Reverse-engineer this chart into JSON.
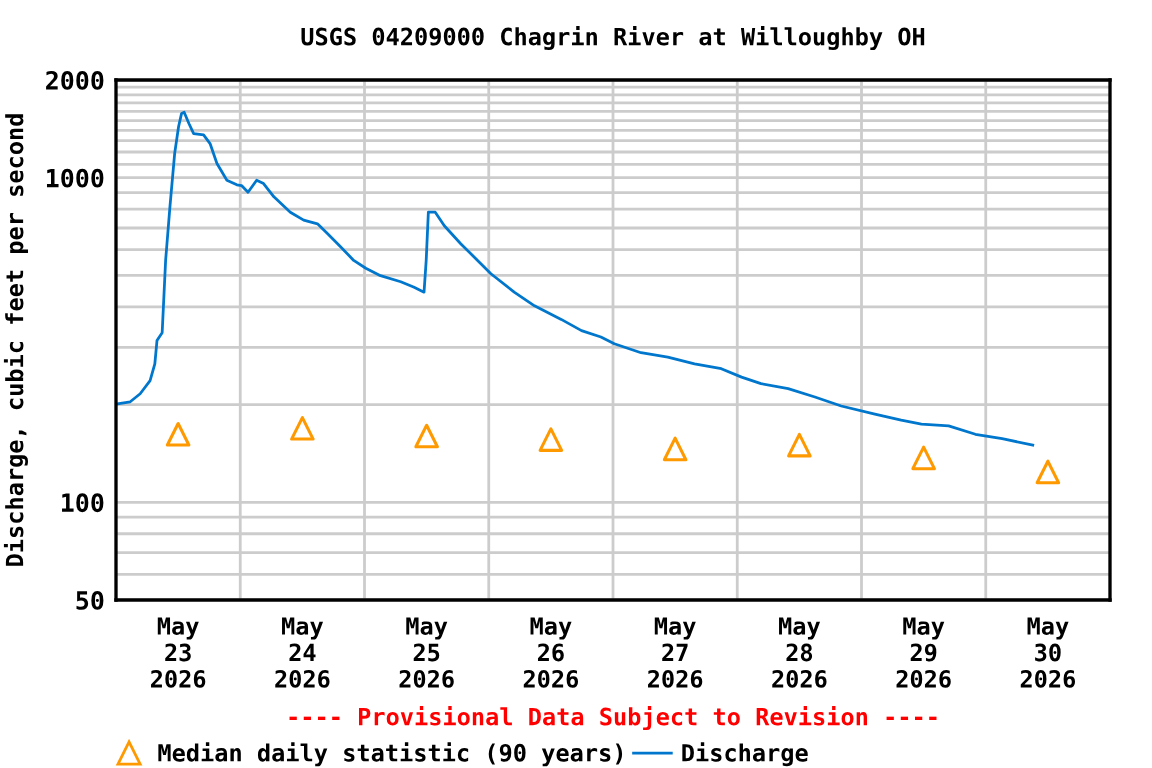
{
  "chart_data": {
    "type": "line",
    "title": "USGS 04209000 Chagrin River at Willoughby OH",
    "ylabel": "Discharge, cubic feet per second",
    "log": "y",
    "grid": true,
    "legend": "bottom",
    "annotations": [
      "---- Provisional Data Subject to Revision ----"
    ],
    "xlim": [
      "2026-05-23T00:00",
      "2026-05-31T00:00"
    ],
    "xticks": [
      {
        "value": "2026-05-23T12:00",
        "label": "May\n23\n2026"
      },
      {
        "value": "2026-05-24T12:00",
        "label": "May\n24\n2026"
      },
      {
        "value": "2026-05-25T12:00",
        "label": "May\n25\n2026"
      },
      {
        "value": "2026-05-26T12:00",
        "label": "May\n26\n2026"
      },
      {
        "value": "2026-05-27T12:00",
        "label": "May\n27\n2026"
      },
      {
        "value": "2026-05-28T12:00",
        "label": "May\n28\n2026"
      },
      {
        "value": "2026-05-29T12:00",
        "label": "May\n29\n2026"
      },
      {
        "value": "2026-05-30T12:00",
        "label": "May\n30\n2026"
      },
      {
        "value": "2026-05-24T00:00",
        "label": null
      },
      {
        "value": "2026-05-25T00:00",
        "label": null
      },
      {
        "value": "2026-05-26T00:00",
        "label": null
      },
      {
        "value": "2026-05-27T00:00",
        "label": null
      },
      {
        "value": "2026-05-28T00:00",
        "label": null
      },
      {
        "value": "2026-05-29T00:00",
        "label": null
      },
      {
        "value": "2026-05-30T00:00",
        "label": null
      }
    ],
    "ylim": [
      50,
      2000
    ],
    "yticks": [
      50,
      {
        "value": 60,
        "label": null
      },
      {
        "value": 70,
        "label": null
      },
      {
        "value": 80,
        "label": null
      },
      {
        "value": 90,
        "label": null
      },
      100,
      {
        "value": 200,
        "label": null
      },
      {
        "value": 300,
        "label": null
      },
      {
        "value": 400,
        "label": null
      },
      {
        "value": 500,
        "label": null
      },
      {
        "value": 600,
        "label": null
      },
      {
        "value": 700,
        "label": null
      },
      {
        "value": 800,
        "label": null
      },
      {
        "value": 900,
        "label": null
      },
      1000,
      {
        "value": 1100,
        "label": null
      },
      {
        "value": 1200,
        "label": null
      },
      {
        "value": 1300,
        "label": null
      },
      {
        "value": 1400,
        "label": null
      },
      {
        "value": 1500,
        "label": null
      },
      {
        "value": 1600,
        "label": null
      },
      {
        "value": 1700,
        "label": null
      },
      {
        "value": 1800,
        "label": null
      },
      {
        "value": 1900,
        "label": null
      },
      2000
    ],
    "series": [
      {
        "name": "Median daily statistic (90 years)",
        "type": "scatter",
        "marker": "triangle",
        "color": "#ff9900",
        "x": [
          "2026-05-23T12:00",
          "2026-05-24T12:00",
          "2026-05-25T12:00",
          "2026-05-26T12:00",
          "2026-05-27T12:00",
          "2026-05-28T12:00",
          "2026-05-29T12:00",
          "2026-05-30T12:00"
        ],
        "values": [
          162,
          169,
          160,
          156,
          146,
          150,
          137,
          124
        ]
      },
      {
        "name": "Discharge",
        "marker": "none",
        "line_style": "solid",
        "color": "#0077cc",
        "x": [
          "2026-05-23T00:15",
          "2026-05-23T02:45",
          "2026-05-23T04:40",
          "2026-05-23T06:35",
          "2026-05-23T07:30",
          "2026-05-23T07:55",
          "2026-05-23T08:55",
          "2026-05-23T09:35",
          "2026-05-23T10:25",
          "2026-05-23T11:20",
          "2026-05-23T12:05",
          "2026-05-23T12:40",
          "2026-05-23T13:10",
          "2026-05-23T14:05",
          "2026-05-23T15:00",
          "2026-05-23T16:55",
          "2026-05-23T18:10",
          "2026-05-23T19:30",
          "2026-05-23T21:25",
          "2026-05-23T23:20",
          "2026-05-24T00:15",
          "2026-05-24T01:30",
          "2026-05-24T03:10",
          "2026-05-24T04:30",
          "2026-05-24T06:30",
          "2026-05-24T09:40",
          "2026-05-24T12:15",
          "2026-05-24T14:55",
          "2026-05-24T16:50",
          "2026-05-24T19:25",
          "2026-05-24T21:55",
          "2026-05-25T00:15",
          "2026-05-25T03:05",
          "2026-05-25T07:00",
          "2026-05-25T09:35",
          "2026-05-25T11:30",
          "2026-05-25T11:55",
          "2026-05-25T12:20",
          "2026-05-25T13:40",
          "2026-05-25T15:25",
          "2026-05-25T18:35",
          "2026-05-25T21:10",
          "2026-05-26T00:25",
          "2026-05-26T04:55",
          "2026-05-26T08:50",
          "2026-05-26T14:00",
          "2026-05-26T17:55",
          "2026-05-26T21:40",
          "2026-05-27T00:15",
          "2026-05-27T05:25",
          "2026-05-27T10:35",
          "2026-05-27T15:45",
          "2026-05-27T20:55",
          "2026-05-28T00:50",
          "2026-05-28T04:35",
          "2026-05-28T09:50",
          "2026-05-28T15:00",
          "2026-05-28T20:05",
          "2026-05-29T02:35",
          "2026-05-29T07:40",
          "2026-05-29T11:35",
          "2026-05-29T16:50",
          "2026-05-29T22:00",
          "2026-05-30T03:10",
          "2026-05-30T09:05"
        ],
        "values": [
          201,
          204,
          216,
          237,
          267,
          315,
          333,
          556,
          813,
          1188,
          1436,
          1578,
          1592,
          1469,
          1368,
          1355,
          1274,
          1106,
          982,
          951,
          946,
          902,
          982,
          959,
          873,
          783,
          740,
          721,
          673,
          612,
          556,
          526,
          499,
          478,
          460,
          444,
          556,
          783,
          783,
          711,
          626,
          570,
          506,
          444,
          403,
          366,
          338,
          323,
          308,
          289,
          280,
          267,
          258,
          243,
          232,
          224,
          211,
          198,
          187,
          179,
          174,
          172,
          162,
          157,
          150
        ]
      }
    ]
  }
}
